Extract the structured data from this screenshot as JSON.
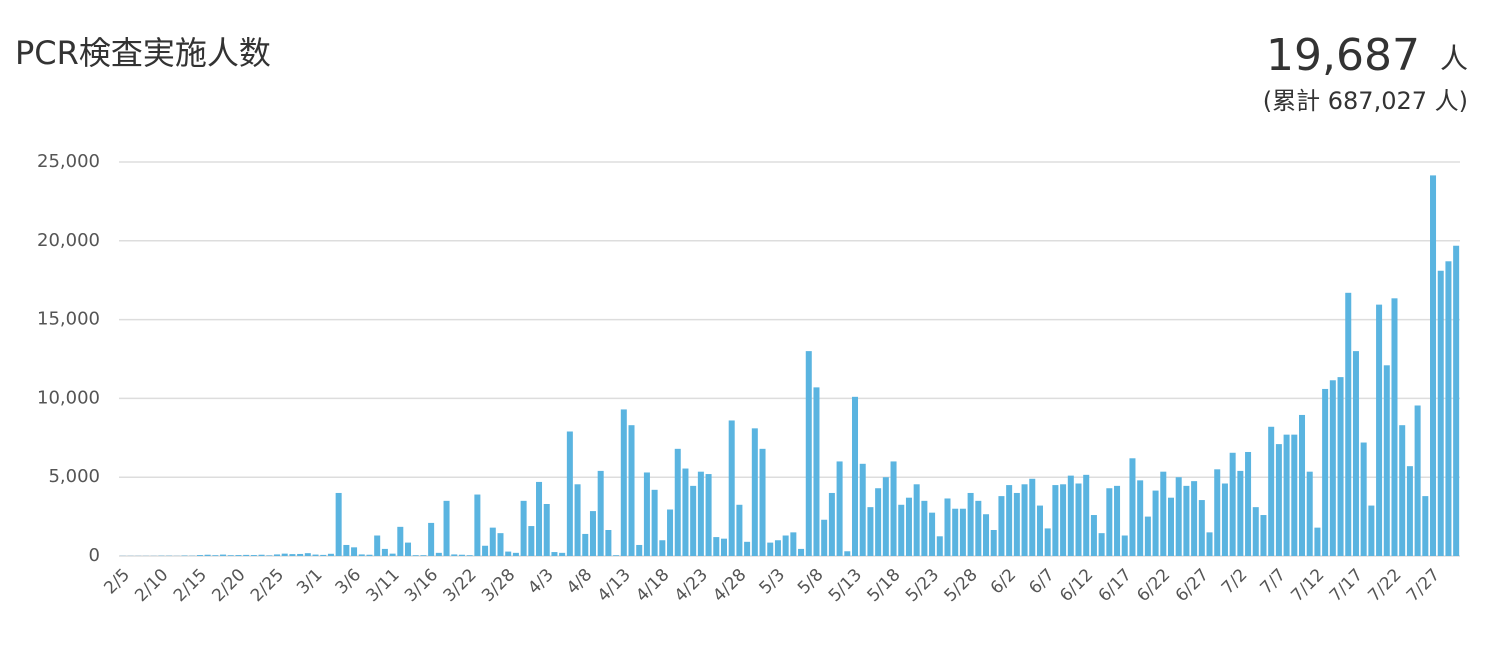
{
  "chart_data": {
    "type": "bar",
    "title": "PCR検査実施人数",
    "summary": {
      "value": "19,687",
      "unit": "人",
      "total": "(累計 687,027 人)"
    },
    "categories": [
      "2/5",
      null,
      null,
      null,
      null,
      "2/10",
      null,
      null,
      null,
      null,
      "2/15",
      null,
      null,
      null,
      null,
      "2/20",
      null,
      null,
      null,
      null,
      "2/25",
      null,
      null,
      null,
      null,
      "3/1",
      null,
      null,
      null,
      null,
      "3/6",
      null,
      null,
      null,
      null,
      "3/11",
      null,
      null,
      null,
      null,
      "3/16",
      null,
      null,
      null,
      null,
      "3/22",
      null,
      null,
      null,
      null,
      "3/28",
      null,
      null,
      null,
      null,
      "4/3",
      null,
      null,
      null,
      null,
      "4/8",
      null,
      null,
      null,
      null,
      "4/13",
      null,
      null,
      null,
      null,
      "4/18",
      null,
      null,
      null,
      null,
      "4/23",
      null,
      null,
      null,
      null,
      "4/28",
      null,
      null,
      null,
      null,
      "5/3",
      null,
      null,
      null,
      null,
      "5/8",
      null,
      null,
      null,
      null,
      "5/13",
      null,
      null,
      null,
      null,
      "5/18",
      null,
      null,
      null,
      null,
      "5/23",
      null,
      null,
      null,
      null,
      "5/28",
      null,
      null,
      null,
      null,
      "6/2",
      null,
      null,
      null,
      null,
      "6/7",
      null,
      null,
      null,
      null,
      "6/12",
      null,
      null,
      null,
      null,
      "6/17",
      null,
      null,
      null,
      null,
      "6/22",
      null,
      null,
      null,
      null,
      "6/27",
      null,
      null,
      null,
      null,
      "7/2",
      null,
      null,
      null,
      null,
      "7/7",
      null,
      null,
      null,
      null,
      "7/12",
      null,
      null,
      null,
      null,
      "7/17",
      null,
      null,
      null,
      null,
      "7/22",
      null,
      null,
      null,
      null,
      "7/27",
      null,
      null,
      null
    ],
    "values": [
      10,
      10,
      10,
      10,
      10,
      20,
      20,
      10,
      30,
      20,
      60,
      80,
      50,
      90,
      50,
      60,
      70,
      60,
      80,
      40,
      100,
      150,
      120,
      130,
      180,
      90,
      70,
      140,
      4000,
      700,
      550,
      100,
      80,
      1300,
      450,
      150,
      1850,
      850,
      50,
      50,
      2100,
      200,
      3500,
      100,
      80,
      50,
      3900,
      650,
      1800,
      1450,
      280,
      200,
      3500,
      1900,
      4700,
      3300,
      250,
      200,
      7900,
      4550,
      1400,
      2850,
      5400,
      1650,
      50,
      9300,
      8300,
      700,
      5300,
      4200,
      1000,
      2950,
      6800,
      5550,
      4450,
      5350,
      5200,
      1200,
      1100,
      8600,
      3250,
      900,
      8100,
      6800,
      850,
      1000,
      1300,
      1500,
      450,
      13000,
      10700,
      2300,
      4000,
      6000,
      300,
      10100,
      5850,
      3100,
      4300,
      5000,
      6000,
      3250,
      3700,
      4550,
      3500,
      2750,
      1250,
      3650,
      3000,
      3000,
      4000,
      3500,
      2650,
      1650,
      3800,
      4500,
      4000,
      4550,
      4900,
      3200,
      1750,
      4500,
      4550,
      5100,
      4600,
      5150,
      2600,
      1450,
      4300,
      4450,
      1300,
      6200,
      4800,
      2500,
      4150,
      5350,
      3700,
      5000,
      4450,
      4750,
      3550,
      1500,
      5500,
      4600,
      6550,
      5400,
      6600,
      3100,
      2600,
      8200,
      7100,
      7700,
      7700,
      8950,
      5350,
      1800,
      10600,
      11150,
      11350,
      16700,
      13000,
      7200,
      3200,
      15950,
      12100,
      16350,
      8300,
      5700,
      9550,
      3800,
      24150,
      18100,
      18700,
      19687
    ],
    "color": "#5ab4e0",
    "ylim": [
      0,
      25000
    ],
    "yticks": [
      0,
      {
        "value": 5000,
        "label": "5,000"
      },
      {
        "value": 10000,
        "label": "10,000"
      },
      {
        "value": 15000,
        "label": "15,000"
      },
      {
        "value": 20000,
        "label": "20,000"
      },
      {
        "value": 25000,
        "label": "25,000"
      }
    ],
    "grid": true
  }
}
